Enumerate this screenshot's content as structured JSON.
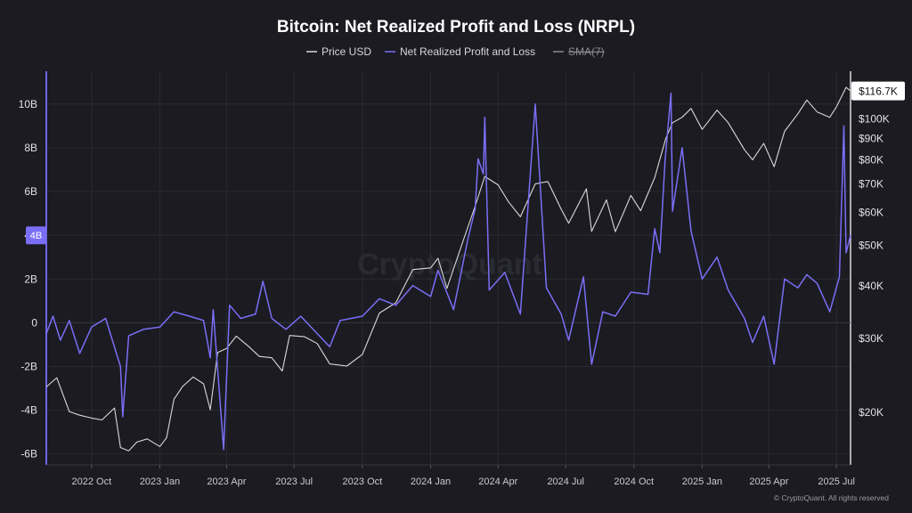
{
  "page": {
    "title": "Bitcoin: Net Realized Profit and Loss (NRPL)",
    "copyright": "© CryptoQuant. All rights reserved",
    "watermark": "CryptoQuant"
  },
  "legend": [
    {
      "name": "Price USD",
      "color": "#d9d9d9",
      "enabled": true
    },
    {
      "name": "Net Realized Profit and Loss",
      "color": "#7b6ef6",
      "enabled": true
    },
    {
      "name": "SMA(7)",
      "color": "#8a8a92",
      "enabled": false
    }
  ],
  "chart_data": {
    "type": "line",
    "title": "Bitcoin: Net Realized Profit and Loss (NRPL)",
    "x_range": [
      "2022-08-01",
      "2025-07-20"
    ],
    "x_ticks": [
      "2022 Oct",
      "2023 Jan",
      "2023 Apr",
      "2023 Jul",
      "2023 Oct",
      "2024 Jan",
      "2024 Apr",
      "2024 Jul",
      "2024 Oct",
      "2025 Jan",
      "2025 Apr",
      "2025 Jul"
    ],
    "x_tick_dates": [
      "2022-10-01",
      "2023-01-01",
      "2023-04-01",
      "2023-07-01",
      "2023-10-01",
      "2024-01-01",
      "2024-04-01",
      "2024-07-01",
      "2024-10-01",
      "2025-01-01",
      "2025-04-01",
      "2025-07-01"
    ],
    "y_left": {
      "label": "",
      "range": [
        -6.5,
        11.5
      ],
      "ticks": [
        "10B",
        "8B",
        "6B",
        "4B",
        "2B",
        "0",
        "-2B",
        "-4B",
        "-6B"
      ],
      "tick_values": [
        10,
        8,
        6,
        4,
        2,
        0,
        -2,
        -4,
        -6
      ],
      "unit": "B",
      "current_value_label": "4B",
      "current_value": 4
    },
    "y_right": {
      "label": "",
      "scale": "log",
      "range": [
        15000,
        130000
      ],
      "ticks": [
        "$100K",
        "$90K",
        "$80K",
        "$70K",
        "$60K",
        "$50K",
        "$40K",
        "$30K",
        "$20K"
      ],
      "tick_values": [
        100000,
        90000,
        80000,
        70000,
        60000,
        50000,
        40000,
        30000,
        20000
      ],
      "current_value_label": "$116.7K",
      "current_value": 116700
    },
    "series": [
      {
        "name": "Price USD",
        "axis": "right",
        "color": "#d9d9d9",
        "points": [
          [
            "2022-08-01",
            23000
          ],
          [
            "2022-08-15",
            24200
          ],
          [
            "2022-09-01",
            20100
          ],
          [
            "2022-09-15",
            19700
          ],
          [
            "2022-10-01",
            19400
          ],
          [
            "2022-10-15",
            19200
          ],
          [
            "2022-11-01",
            20500
          ],
          [
            "2022-11-09",
            16500
          ],
          [
            "2022-11-20",
            16200
          ],
          [
            "2022-12-01",
            17000
          ],
          [
            "2022-12-15",
            17300
          ],
          [
            "2023-01-01",
            16600
          ],
          [
            "2023-01-10",
            17400
          ],
          [
            "2023-01-20",
            21500
          ],
          [
            "2023-02-01",
            23100
          ],
          [
            "2023-02-15",
            24300
          ],
          [
            "2023-03-01",
            23400
          ],
          [
            "2023-03-10",
            20300
          ],
          [
            "2023-03-20",
            27800
          ],
          [
            "2023-04-01",
            28400
          ],
          [
            "2023-04-14",
            30400
          ],
          [
            "2023-05-01",
            28700
          ],
          [
            "2023-05-15",
            27200
          ],
          [
            "2023-06-01",
            27000
          ],
          [
            "2023-06-15",
            25100
          ],
          [
            "2023-06-25",
            30500
          ],
          [
            "2023-07-15",
            30300
          ],
          [
            "2023-08-01",
            29200
          ],
          [
            "2023-08-18",
            26100
          ],
          [
            "2023-09-10",
            25800
          ],
          [
            "2023-10-01",
            27500
          ],
          [
            "2023-10-24",
            34500
          ],
          [
            "2023-11-15",
            36500
          ],
          [
            "2023-12-08",
            43800
          ],
          [
            "2024-01-01",
            44200
          ],
          [
            "2024-01-11",
            46600
          ],
          [
            "2024-01-23",
            39500
          ],
          [
            "2024-02-15",
            52000
          ],
          [
            "2024-03-01",
            62000
          ],
          [
            "2024-03-14",
            73000
          ],
          [
            "2024-04-01",
            69700
          ],
          [
            "2024-04-15",
            63500
          ],
          [
            "2024-05-01",
            58500
          ],
          [
            "2024-05-21",
            70100
          ],
          [
            "2024-06-07",
            71000
          ],
          [
            "2024-06-25",
            61000
          ],
          [
            "2024-07-05",
            56500
          ],
          [
            "2024-07-29",
            68200
          ],
          [
            "2024-08-05",
            54000
          ],
          [
            "2024-08-25",
            64200
          ],
          [
            "2024-09-06",
            53900
          ],
          [
            "2024-09-27",
            65800
          ],
          [
            "2024-10-10",
            60500
          ],
          [
            "2024-10-29",
            72500
          ],
          [
            "2024-11-13",
            90000
          ],
          [
            "2024-11-22",
            98000
          ],
          [
            "2024-12-05",
            101000
          ],
          [
            "2024-12-17",
            106000
          ],
          [
            "2025-01-01",
            94500
          ],
          [
            "2025-01-21",
            105000
          ],
          [
            "2025-02-05",
            98000
          ],
          [
            "2025-02-27",
            84500
          ],
          [
            "2025-03-10",
            80000
          ],
          [
            "2025-03-25",
            87500
          ],
          [
            "2025-04-08",
            77000
          ],
          [
            "2025-04-22",
            93500
          ],
          [
            "2025-05-10",
            103000
          ],
          [
            "2025-05-22",
            111000
          ],
          [
            "2025-06-05",
            104000
          ],
          [
            "2025-06-22",
            101000
          ],
          [
            "2025-07-01",
            107000
          ],
          [
            "2025-07-14",
            119000
          ],
          [
            "2025-07-20",
            116700
          ]
        ]
      },
      {
        "name": "Net Realized Profit and Loss",
        "axis": "left",
        "color": "#7b6ef6",
        "points": [
          [
            "2022-08-01",
            -0.5
          ],
          [
            "2022-08-10",
            0.3
          ],
          [
            "2022-08-20",
            -0.8
          ],
          [
            "2022-09-01",
            0.1
          ],
          [
            "2022-09-15",
            -1.4
          ],
          [
            "2022-10-01",
            -0.2
          ],
          [
            "2022-10-20",
            0.2
          ],
          [
            "2022-11-09",
            -2.0
          ],
          [
            "2022-11-12",
            -4.3
          ],
          [
            "2022-11-20",
            -0.6
          ],
          [
            "2022-12-10",
            -0.3
          ],
          [
            "2023-01-01",
            -0.2
          ],
          [
            "2023-01-20",
            0.5
          ],
          [
            "2023-02-10",
            0.3
          ],
          [
            "2023-03-01",
            0.1
          ],
          [
            "2023-03-10",
            -1.6
          ],
          [
            "2023-03-14",
            0.6
          ],
          [
            "2023-03-28",
            -5.8
          ],
          [
            "2023-04-05",
            0.8
          ],
          [
            "2023-04-20",
            0.2
          ],
          [
            "2023-05-10",
            0.4
          ],
          [
            "2023-05-20",
            1.9
          ],
          [
            "2023-06-01",
            0.2
          ],
          [
            "2023-06-20",
            -0.3
          ],
          [
            "2023-07-10",
            0.3
          ],
          [
            "2023-08-18",
            -1.1
          ],
          [
            "2023-09-01",
            0.1
          ],
          [
            "2023-10-01",
            0.3
          ],
          [
            "2023-10-24",
            1.1
          ],
          [
            "2023-11-15",
            0.8
          ],
          [
            "2023-12-08",
            1.7
          ],
          [
            "2024-01-01",
            1.2
          ],
          [
            "2024-01-11",
            2.4
          ],
          [
            "2024-02-01",
            0.6
          ],
          [
            "2024-02-20",
            3.8
          ],
          [
            "2024-03-01",
            5.2
          ],
          [
            "2024-03-05",
            7.5
          ],
          [
            "2024-03-12",
            6.8
          ],
          [
            "2024-03-14",
            9.4
          ],
          [
            "2024-03-20",
            1.5
          ],
          [
            "2024-04-10",
            2.3
          ],
          [
            "2024-05-01",
            0.4
          ],
          [
            "2024-05-21",
            10.0
          ],
          [
            "2024-06-05",
            1.6
          ],
          [
            "2024-06-25",
            0.4
          ],
          [
            "2024-07-05",
            -0.8
          ],
          [
            "2024-07-25",
            2.1
          ],
          [
            "2024-08-05",
            -1.9
          ],
          [
            "2024-08-20",
            0.5
          ],
          [
            "2024-09-06",
            0.3
          ],
          [
            "2024-09-27",
            1.4
          ],
          [
            "2024-10-20",
            1.3
          ],
          [
            "2024-10-29",
            4.3
          ],
          [
            "2024-11-05",
            3.2
          ],
          [
            "2024-11-12",
            7.4
          ],
          [
            "2024-11-20",
            10.5
          ],
          [
            "2024-11-22",
            5.1
          ],
          [
            "2024-12-05",
            8.0
          ],
          [
            "2024-12-17",
            4.2
          ],
          [
            "2025-01-01",
            2.0
          ],
          [
            "2025-01-21",
            3.0
          ],
          [
            "2025-02-05",
            1.5
          ],
          [
            "2025-02-27",
            0.2
          ],
          [
            "2025-03-10",
            -0.9
          ],
          [
            "2025-03-25",
            0.3
          ],
          [
            "2025-04-08",
            -1.9
          ],
          [
            "2025-04-22",
            2.0
          ],
          [
            "2025-05-10",
            1.6
          ],
          [
            "2025-05-22",
            2.2
          ],
          [
            "2025-06-05",
            1.8
          ],
          [
            "2025-06-22",
            0.5
          ],
          [
            "2025-07-05",
            2.1
          ],
          [
            "2025-07-11",
            9.0
          ],
          [
            "2025-07-14",
            3.2
          ],
          [
            "2025-07-20",
            4.0
          ]
        ]
      }
    ],
    "legend_position": "top-center",
    "grid": true
  }
}
